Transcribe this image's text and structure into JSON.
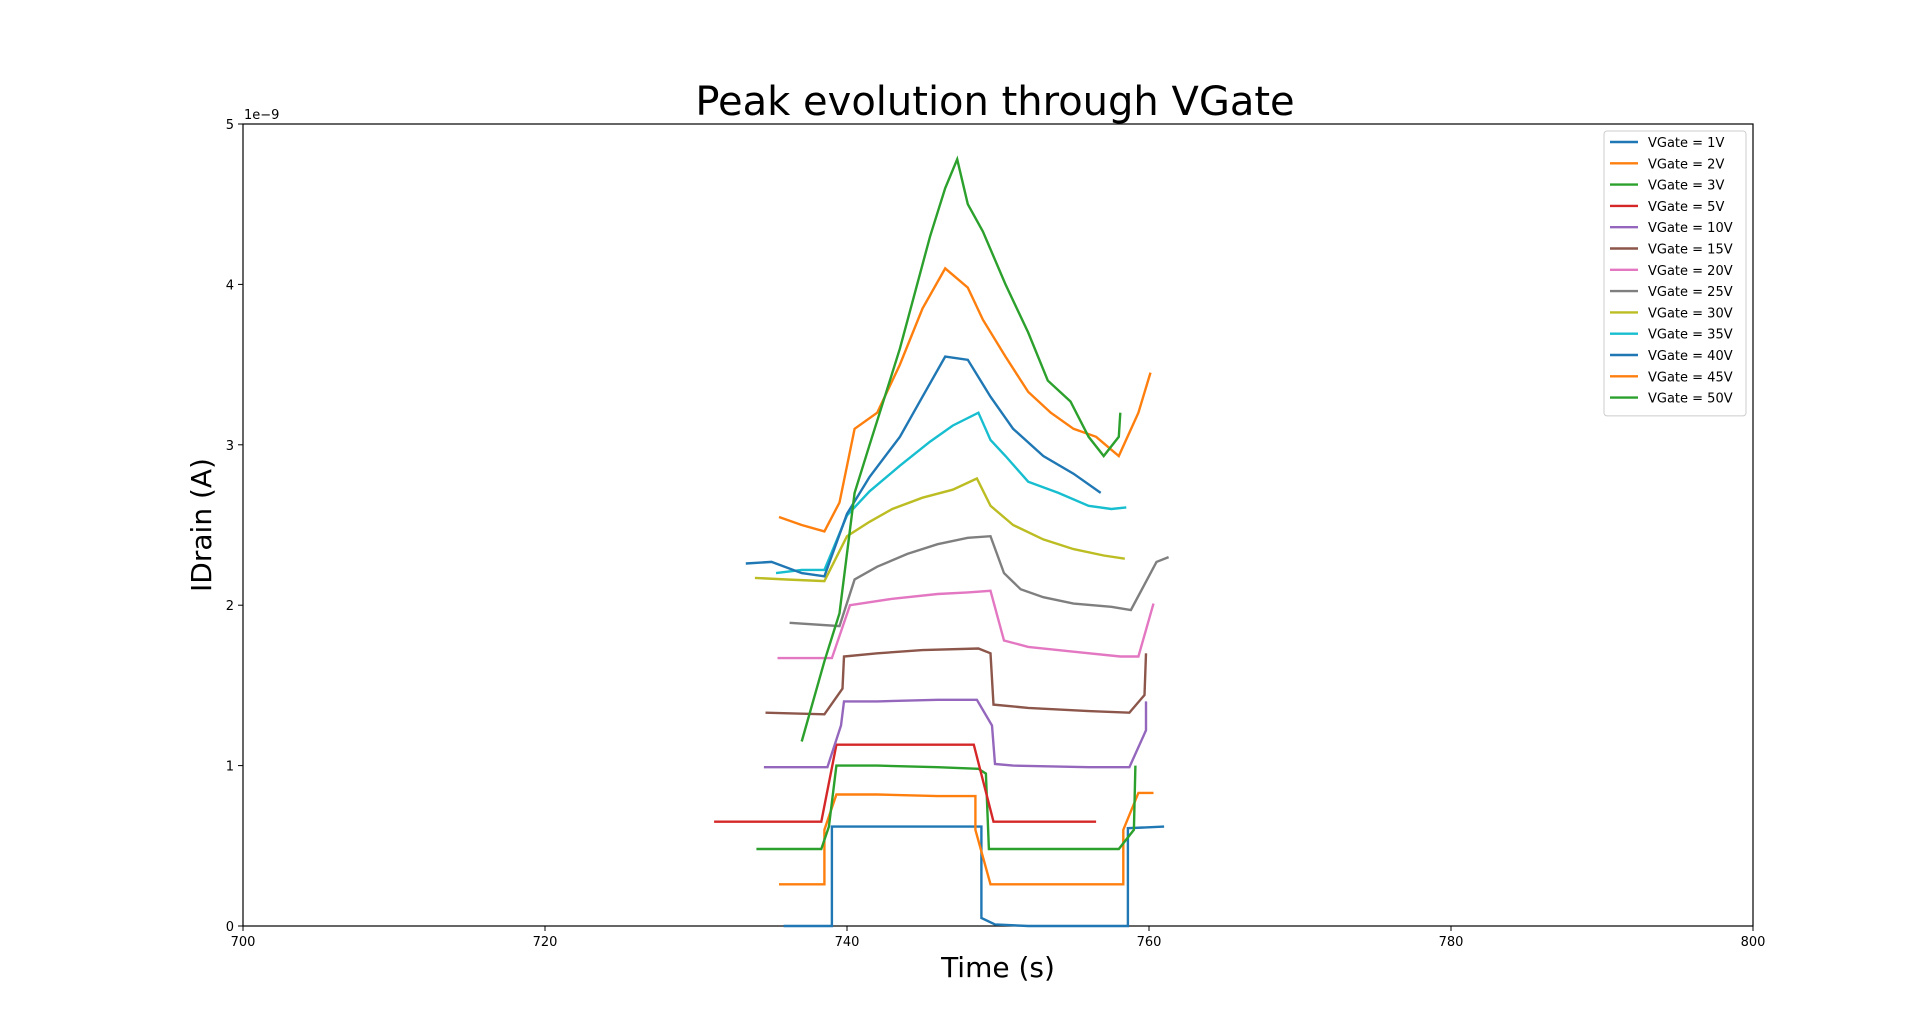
{
  "chart_data": {
    "type": "line",
    "title": "Peak evolution through VGate",
    "xlabel": "Time (s)",
    "ylabel": "IDrain (A)",
    "y_multiplier": "1e−9",
    "xlim": [
      700,
      800
    ],
    "ylim": [
      0,
      5
    ],
    "x_ticks": [
      "700",
      "720",
      "740",
      "760",
      "780",
      "800"
    ],
    "y_ticks": [
      "0",
      "1",
      "2",
      "3",
      "4",
      "5"
    ],
    "grid": false,
    "legend": "top-right",
    "series": [
      {
        "name": "VGate = 1V",
        "color": "#1f77b4",
        "points": [
          [
            735.8,
            0.0
          ],
          [
            739.0,
            0.0
          ],
          [
            739.0,
            0.62
          ],
          [
            741.0,
            0.62
          ],
          [
            745.0,
            0.62
          ],
          [
            748.0,
            0.62
          ],
          [
            748.9,
            0.62
          ],
          [
            748.9,
            0.05
          ],
          [
            749.8,
            0.01
          ],
          [
            752.0,
            0.0
          ],
          [
            758.6,
            0.0
          ],
          [
            758.6,
            0.61
          ],
          [
            761.0,
            0.62
          ]
        ]
      },
      {
        "name": "VGate = 2V",
        "color": "#ff7f0e",
        "points": [
          [
            735.5,
            0.26
          ],
          [
            738.5,
            0.26
          ],
          [
            738.5,
            0.6
          ],
          [
            739.3,
            0.82
          ],
          [
            742.0,
            0.82
          ],
          [
            746.0,
            0.81
          ],
          [
            748.5,
            0.81
          ],
          [
            748.5,
            0.6
          ],
          [
            749.5,
            0.26
          ],
          [
            752.0,
            0.26
          ],
          [
            758.3,
            0.26
          ],
          [
            758.3,
            0.6
          ],
          [
            759.3,
            0.83
          ],
          [
            760.3,
            0.83
          ]
        ]
      },
      {
        "name": "VGate = 3V",
        "color": "#2ca02c",
        "points": [
          [
            734.0,
            0.48
          ],
          [
            738.3,
            0.48
          ],
          [
            738.8,
            0.62
          ],
          [
            739.3,
            1.0
          ],
          [
            742.0,
            1.0
          ],
          [
            746.0,
            0.99
          ],
          [
            748.7,
            0.98
          ],
          [
            749.2,
            0.95
          ],
          [
            749.4,
            0.48
          ],
          [
            752.0,
            0.48
          ],
          [
            758.0,
            0.48
          ],
          [
            759.0,
            0.6
          ],
          [
            759.1,
            1.0
          ]
        ]
      },
      {
        "name": "VGate = 5V",
        "color": "#d62728",
        "points": [
          [
            731.2,
            0.65
          ],
          [
            738.3,
            0.65
          ],
          [
            739.3,
            1.13
          ],
          [
            742.0,
            1.13
          ],
          [
            745.0,
            1.13
          ],
          [
            748.4,
            1.13
          ],
          [
            749.7,
            0.65
          ],
          [
            752.0,
            0.65
          ],
          [
            756.5,
            0.65
          ]
        ]
      },
      {
        "name": "VGate = 10V",
        "color": "#9467bd",
        "points": [
          [
            734.5,
            0.99
          ],
          [
            738.7,
            0.99
          ],
          [
            739.6,
            1.25
          ],
          [
            739.8,
            1.4
          ],
          [
            742.0,
            1.4
          ],
          [
            746.0,
            1.41
          ],
          [
            748.6,
            1.41
          ],
          [
            749.6,
            1.25
          ],
          [
            749.8,
            1.01
          ],
          [
            751.0,
            1.0
          ],
          [
            756.0,
            0.99
          ],
          [
            758.7,
            0.99
          ],
          [
            759.8,
            1.22
          ],
          [
            759.8,
            1.4
          ]
        ]
      },
      {
        "name": "VGate = 15V",
        "color": "#8c564b",
        "points": [
          [
            734.6,
            1.33
          ],
          [
            738.5,
            1.32
          ],
          [
            739.7,
            1.48
          ],
          [
            739.8,
            1.68
          ],
          [
            742.0,
            1.7
          ],
          [
            745.0,
            1.72
          ],
          [
            748.7,
            1.73
          ],
          [
            749.5,
            1.7
          ],
          [
            749.7,
            1.38
          ],
          [
            752.0,
            1.36
          ],
          [
            756.0,
            1.34
          ],
          [
            758.7,
            1.33
          ],
          [
            759.7,
            1.44
          ],
          [
            759.8,
            1.7
          ]
        ]
      },
      {
        "name": "VGate = 20V",
        "color": "#e377c2",
        "points": [
          [
            735.4,
            1.67
          ],
          [
            739.0,
            1.67
          ],
          [
            740.2,
            2.0
          ],
          [
            743.0,
            2.04
          ],
          [
            746.0,
            2.07
          ],
          [
            748.0,
            2.08
          ],
          [
            749.5,
            2.09
          ],
          [
            750.4,
            1.78
          ],
          [
            752.0,
            1.74
          ],
          [
            755.0,
            1.71
          ],
          [
            758.1,
            1.68
          ],
          [
            759.3,
            1.68
          ],
          [
            760.3,
            2.01
          ]
        ]
      },
      {
        "name": "VGate = 25V",
        "color": "#7f7f7f",
        "points": [
          [
            736.2,
            1.89
          ],
          [
            739.5,
            1.87
          ],
          [
            740.5,
            2.16
          ],
          [
            742.0,
            2.24
          ],
          [
            744.0,
            2.32
          ],
          [
            746.0,
            2.38
          ],
          [
            748.0,
            2.42
          ],
          [
            749.5,
            2.43
          ],
          [
            750.4,
            2.2
          ],
          [
            751.5,
            2.1
          ],
          [
            753.0,
            2.05
          ],
          [
            755.0,
            2.01
          ],
          [
            757.5,
            1.99
          ],
          [
            758.8,
            1.97
          ],
          [
            760.5,
            2.27
          ],
          [
            761.3,
            2.3
          ]
        ]
      },
      {
        "name": "VGate = 30V",
        "color": "#bcbd22",
        "points": [
          [
            733.9,
            2.17
          ],
          [
            736.0,
            2.16
          ],
          [
            738.5,
            2.15
          ],
          [
            740.0,
            2.43
          ],
          [
            741.5,
            2.52
          ],
          [
            743.0,
            2.6
          ],
          [
            745.0,
            2.67
          ],
          [
            747.0,
            2.72
          ],
          [
            748.6,
            2.79
          ],
          [
            749.5,
            2.62
          ],
          [
            751.0,
            2.5
          ],
          [
            753.0,
            2.41
          ],
          [
            755.0,
            2.35
          ],
          [
            757.0,
            2.31
          ],
          [
            758.4,
            2.29
          ]
        ]
      },
      {
        "name": "VGate = 35V",
        "color": "#17becf",
        "points": [
          [
            735.3,
            2.2
          ],
          [
            737.0,
            2.22
          ],
          [
            738.5,
            2.22
          ],
          [
            740.0,
            2.56
          ],
          [
            741.5,
            2.71
          ],
          [
            743.5,
            2.87
          ],
          [
            745.5,
            3.02
          ],
          [
            747.0,
            3.12
          ],
          [
            748.7,
            3.2
          ],
          [
            749.5,
            3.03
          ],
          [
            750.5,
            2.93
          ],
          [
            752.0,
            2.77
          ],
          [
            754.0,
            2.7
          ],
          [
            756.0,
            2.62
          ],
          [
            757.5,
            2.6
          ],
          [
            758.5,
            2.61
          ]
        ]
      },
      {
        "name": "VGate = 40V",
        "color": "#1f77b4",
        "points": [
          [
            733.3,
            2.26
          ],
          [
            735.0,
            2.27
          ],
          [
            737.0,
            2.2
          ],
          [
            738.5,
            2.18
          ],
          [
            740.0,
            2.57
          ],
          [
            741.5,
            2.8
          ],
          [
            743.5,
            3.05
          ],
          [
            745.0,
            3.3
          ],
          [
            746.5,
            3.55
          ],
          [
            748.0,
            3.53
          ],
          [
            749.5,
            3.3
          ],
          [
            751.0,
            3.1
          ],
          [
            753.0,
            2.93
          ],
          [
            755.0,
            2.82
          ],
          [
            756.8,
            2.7
          ]
        ]
      },
      {
        "name": "VGate = 45V",
        "color": "#ff7f0e",
        "points": [
          [
            735.5,
            2.55
          ],
          [
            737.0,
            2.5
          ],
          [
            738.5,
            2.46
          ],
          [
            739.5,
            2.64
          ],
          [
            740.5,
            3.1
          ],
          [
            742.0,
            3.2
          ],
          [
            743.5,
            3.5
          ],
          [
            745.0,
            3.85
          ],
          [
            746.5,
            4.1
          ],
          [
            748.0,
            3.98
          ],
          [
            749.0,
            3.78
          ],
          [
            750.5,
            3.55
          ],
          [
            752.0,
            3.33
          ],
          [
            753.5,
            3.2
          ],
          [
            755.0,
            3.1
          ],
          [
            756.5,
            3.05
          ],
          [
            758.0,
            2.93
          ],
          [
            759.3,
            3.2
          ],
          [
            760.1,
            3.45
          ]
        ]
      },
      {
        "name": "VGate = 50V",
        "color": "#2ca02c",
        "points": [
          [
            737.0,
            1.15
          ],
          [
            738.5,
            1.65
          ],
          [
            739.5,
            1.95
          ],
          [
            740.5,
            2.7
          ],
          [
            741.5,
            3.0
          ],
          [
            742.5,
            3.3
          ],
          [
            743.5,
            3.6
          ],
          [
            744.5,
            3.95
          ],
          [
            745.5,
            4.3
          ],
          [
            746.5,
            4.6
          ],
          [
            747.3,
            4.78
          ],
          [
            748.0,
            4.5
          ],
          [
            749.0,
            4.33
          ],
          [
            750.5,
            4.0
          ],
          [
            752.0,
            3.7
          ],
          [
            753.3,
            3.4
          ],
          [
            754.8,
            3.27
          ],
          [
            756.0,
            3.05
          ],
          [
            757.0,
            2.93
          ],
          [
            758.0,
            3.05
          ],
          [
            758.1,
            3.2
          ]
        ]
      }
    ]
  }
}
